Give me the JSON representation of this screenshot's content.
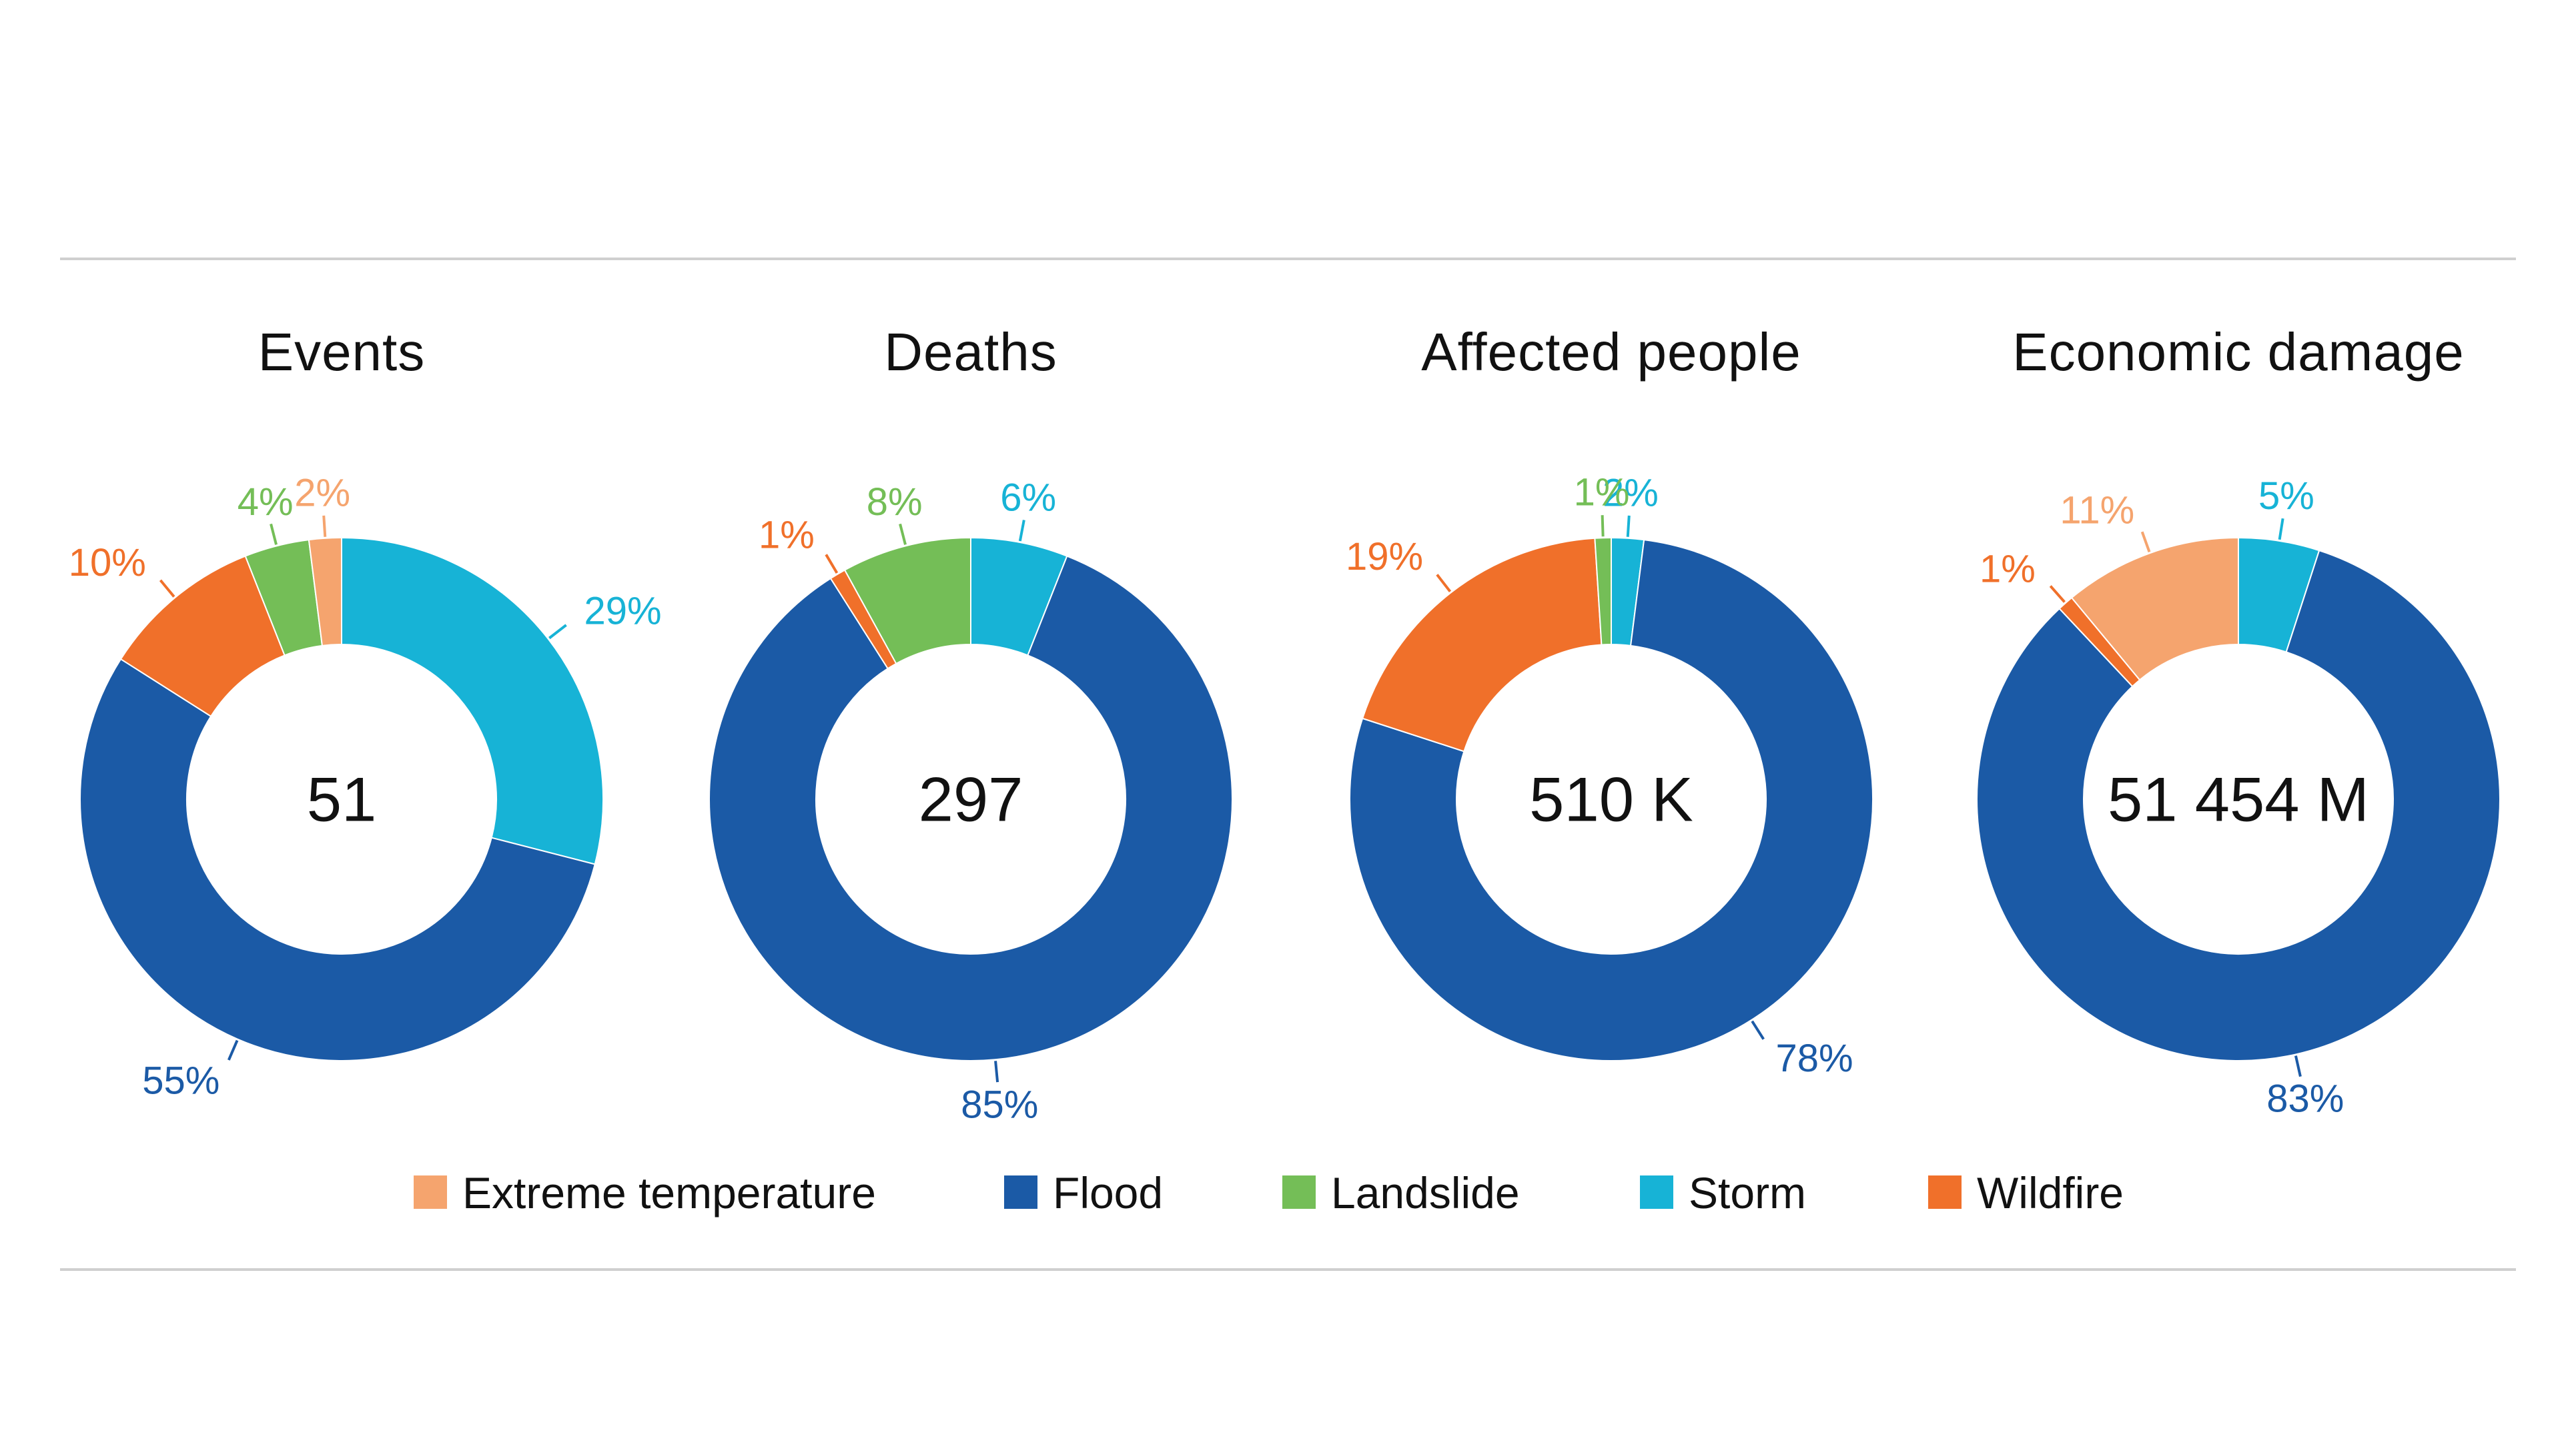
{
  "categories": [
    {
      "key": "extreme",
      "label": "Extreme temperature",
      "color": "#F5A46E"
    },
    {
      "key": "flood",
      "label": "Flood",
      "color": "#1B5AA6"
    },
    {
      "key": "landslide",
      "label": "Landslide",
      "color": "#74BE57"
    },
    {
      "key": "storm",
      "label": "Storm",
      "color": "#17B3D6"
    },
    {
      "key": "wildfire",
      "label": "Wildfire",
      "color": "#F0702A"
    }
  ],
  "chart_data": [
    {
      "type": "pie",
      "title": "Events",
      "center_label": "51",
      "slices": [
        {
          "category": "Storm",
          "value": 29,
          "label": "29%"
        },
        {
          "category": "Flood",
          "value": 55,
          "label": "55%"
        },
        {
          "category": "Wildfire",
          "value": 10,
          "label": "10%"
        },
        {
          "category": "Landslide",
          "value": 4,
          "label": "4%"
        },
        {
          "category": "Extreme temperature",
          "value": 2,
          "label": "2%"
        }
      ]
    },
    {
      "type": "pie",
      "title": "Deaths",
      "center_label": "297",
      "slices": [
        {
          "category": "Storm",
          "value": 6,
          "label": "6%"
        },
        {
          "category": "Flood",
          "value": 85,
          "label": "85%"
        },
        {
          "category": "Wildfire",
          "value": 1,
          "label": "1%"
        },
        {
          "category": "Landslide",
          "value": 8,
          "label": "8%"
        }
      ]
    },
    {
      "type": "pie",
      "title": "Affected people",
      "center_label": "510 K",
      "slices": [
        {
          "category": "Storm",
          "value": 2,
          "label": "2%"
        },
        {
          "category": "Flood",
          "value": 78,
          "label": "78%"
        },
        {
          "category": "Wildfire",
          "value": 19,
          "label": "19%"
        },
        {
          "category": "Landslide",
          "value": 1,
          "label": "1%"
        }
      ]
    },
    {
      "type": "pie",
      "title": "Economic damage",
      "center_label": "51 454 M",
      "slices": [
        {
          "category": "Storm",
          "value": 5,
          "label": "5%"
        },
        {
          "category": "Flood",
          "value": 83,
          "label": "83%"
        },
        {
          "category": "Wildfire",
          "value": 1,
          "label": "1%"
        },
        {
          "category": "Extreme temperature",
          "value": 11,
          "label": "11%"
        }
      ]
    }
  ]
}
